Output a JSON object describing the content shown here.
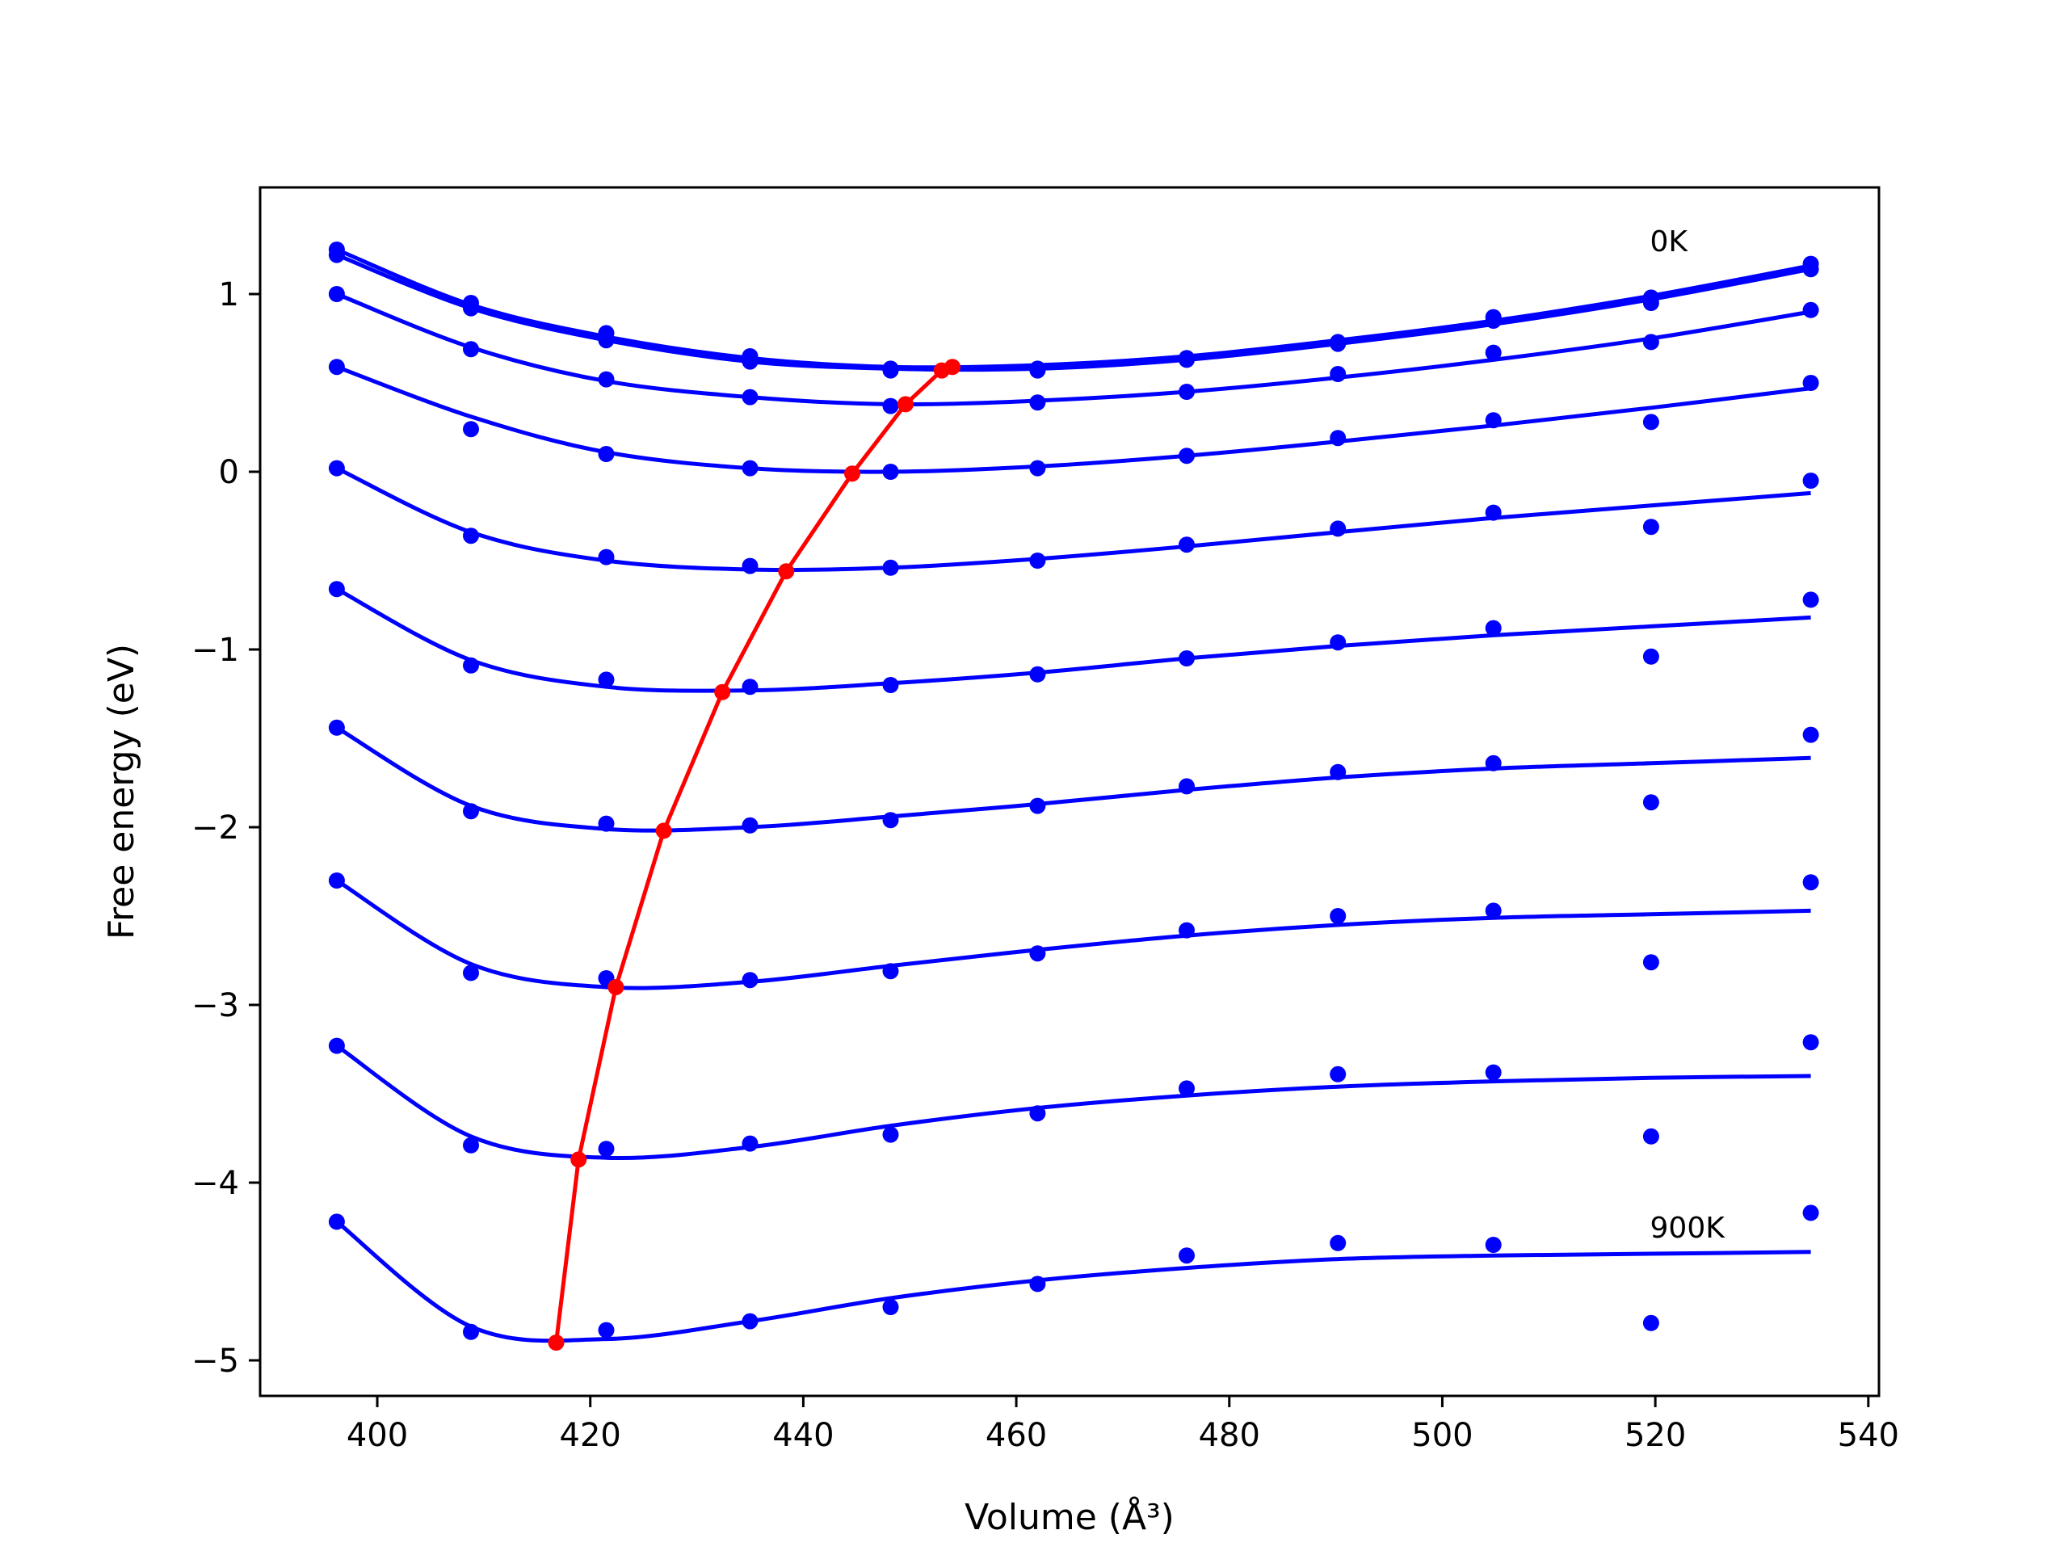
{
  "chart_data": {
    "type": "line",
    "xlabel": "Volume (Å³)",
    "ylabel": "Free energy (eV)",
    "xlim": [
      389,
      541
    ],
    "ylim": [
      -5.2,
      1.6
    ],
    "xticks": [
      400,
      420,
      440,
      460,
      480,
      500,
      520,
      540
    ],
    "xtick_labels": [
      "400",
      "420",
      "440",
      "460",
      "480",
      "500",
      "520",
      "540"
    ],
    "yticks": [
      -5,
      -4,
      -3,
      -2,
      -1,
      0,
      1
    ],
    "ytick_labels": [
      "−5",
      "−4",
      "−3",
      "−2",
      "−1",
      "0",
      "1"
    ],
    "grid": false,
    "legend": "none",
    "annotations": [
      {
        "text": "0K",
        "x": 519.5,
        "y": 1.24
      },
      {
        "text": "900K",
        "x": 519.5,
        "y": -4.31
      }
    ],
    "volumes": [
      396.2,
      408.8,
      421.5,
      435.0,
      448.2,
      462.0,
      476.0,
      490.2,
      504.8,
      519.6,
      534.6
    ],
    "series": [
      {
        "points": [
          1.25,
          0.95,
          0.78,
          0.65,
          0.58,
          0.58,
          0.64,
          0.73,
          0.87,
          0.98,
          1.17
        ],
        "curve": [
          1.25,
          0.94,
          0.76,
          0.64,
          0.59,
          0.6,
          0.65,
          0.74,
          0.85,
          0.99,
          1.16
        ]
      },
      {
        "points": [
          1.22,
          0.92,
          0.74,
          0.62,
          0.57,
          0.57,
          0.63,
          0.72,
          0.85,
          0.95,
          1.14
        ],
        "curve": [
          1.22,
          0.92,
          0.74,
          0.62,
          0.58,
          0.58,
          0.63,
          0.72,
          0.83,
          0.97,
          1.14
        ]
      },
      {
        "points": [
          1.0,
          0.69,
          0.52,
          0.42,
          0.37,
          0.39,
          0.45,
          0.55,
          0.67,
          0.73,
          0.91
        ],
        "curve": [
          1.0,
          0.7,
          0.51,
          0.42,
          0.38,
          0.4,
          0.45,
          0.53,
          0.63,
          0.75,
          0.9
        ]
      },
      {
        "points": [
          0.59,
          0.24,
          0.1,
          0.02,
          0.0,
          0.02,
          0.09,
          0.19,
          0.29,
          0.28,
          0.5
        ],
        "curve": [
          0.59,
          0.31,
          0.11,
          0.02,
          0.0,
          0.03,
          0.09,
          0.17,
          0.26,
          0.36,
          0.47
        ]
      },
      {
        "points": [
          0.02,
          -0.36,
          -0.48,
          -0.53,
          -0.54,
          -0.5,
          -0.41,
          -0.32,
          -0.23,
          -0.31,
          -0.05
        ],
        "curve": [
          0.02,
          -0.34,
          -0.5,
          -0.55,
          -0.54,
          -0.49,
          -0.42,
          -0.34,
          -0.26,
          -0.19,
          -0.12
        ]
      },
      {
        "points": [
          -0.66,
          -1.09,
          -1.17,
          -1.21,
          -1.2,
          -1.14,
          -1.05,
          -0.96,
          -0.88,
          -1.04,
          -0.72
        ],
        "curve": [
          -0.66,
          -1.06,
          -1.21,
          -1.23,
          -1.19,
          -1.13,
          -1.05,
          -0.98,
          -0.92,
          -0.87,
          -0.82
        ]
      },
      {
        "points": [
          -1.44,
          -1.91,
          -1.98,
          -1.99,
          -1.96,
          -1.88,
          -1.77,
          -1.69,
          -1.64,
          -1.86,
          -1.48
        ],
        "curve": [
          -1.44,
          -1.88,
          -2.01,
          -2.0,
          -1.94,
          -1.87,
          -1.79,
          -1.72,
          -1.67,
          -1.64,
          -1.61
        ]
      },
      {
        "points": [
          -2.3,
          -2.82,
          -2.85,
          -2.86,
          -2.81,
          -2.71,
          -2.58,
          -2.5,
          -2.47,
          -2.76,
          -2.31
        ],
        "curve": [
          -2.3,
          -2.77,
          -2.9,
          -2.87,
          -2.78,
          -2.69,
          -2.61,
          -2.55,
          -2.51,
          -2.49,
          -2.47
        ]
      },
      {
        "points": [
          -3.23,
          -3.79,
          -3.81,
          -3.78,
          -3.73,
          -3.61,
          -3.47,
          -3.39,
          -3.38,
          -3.74,
          -3.21
        ],
        "curve": [
          -3.23,
          -3.74,
          -3.86,
          -3.8,
          -3.68,
          -3.58,
          -3.51,
          -3.46,
          -3.43,
          -3.41,
          -3.4
        ]
      },
      {
        "points": [
          -4.22,
          -4.84,
          -4.83,
          -4.78,
          -4.7,
          -4.57,
          -4.41,
          -4.34,
          -4.35,
          -4.79,
          -4.17
        ],
        "curve": [
          -4.22,
          -4.81,
          -4.88,
          -4.78,
          -4.65,
          -4.55,
          -4.48,
          -4.43,
          -4.41,
          -4.4,
          -4.39
        ]
      }
    ],
    "minima": {
      "x": [
        416.8,
        418.9,
        422.4,
        426.9,
        432.4,
        438.4,
        444.6,
        449.6,
        453.0,
        454.0
      ],
      "y": [
        -4.9,
        -3.87,
        -2.9,
        -2.02,
        -1.24,
        -0.56,
        -0.01,
        0.38,
        0.57,
        0.59
      ]
    },
    "colors": {
      "curves": "#0000ff",
      "minima": "#ff0000",
      "axes": "#000000"
    }
  }
}
